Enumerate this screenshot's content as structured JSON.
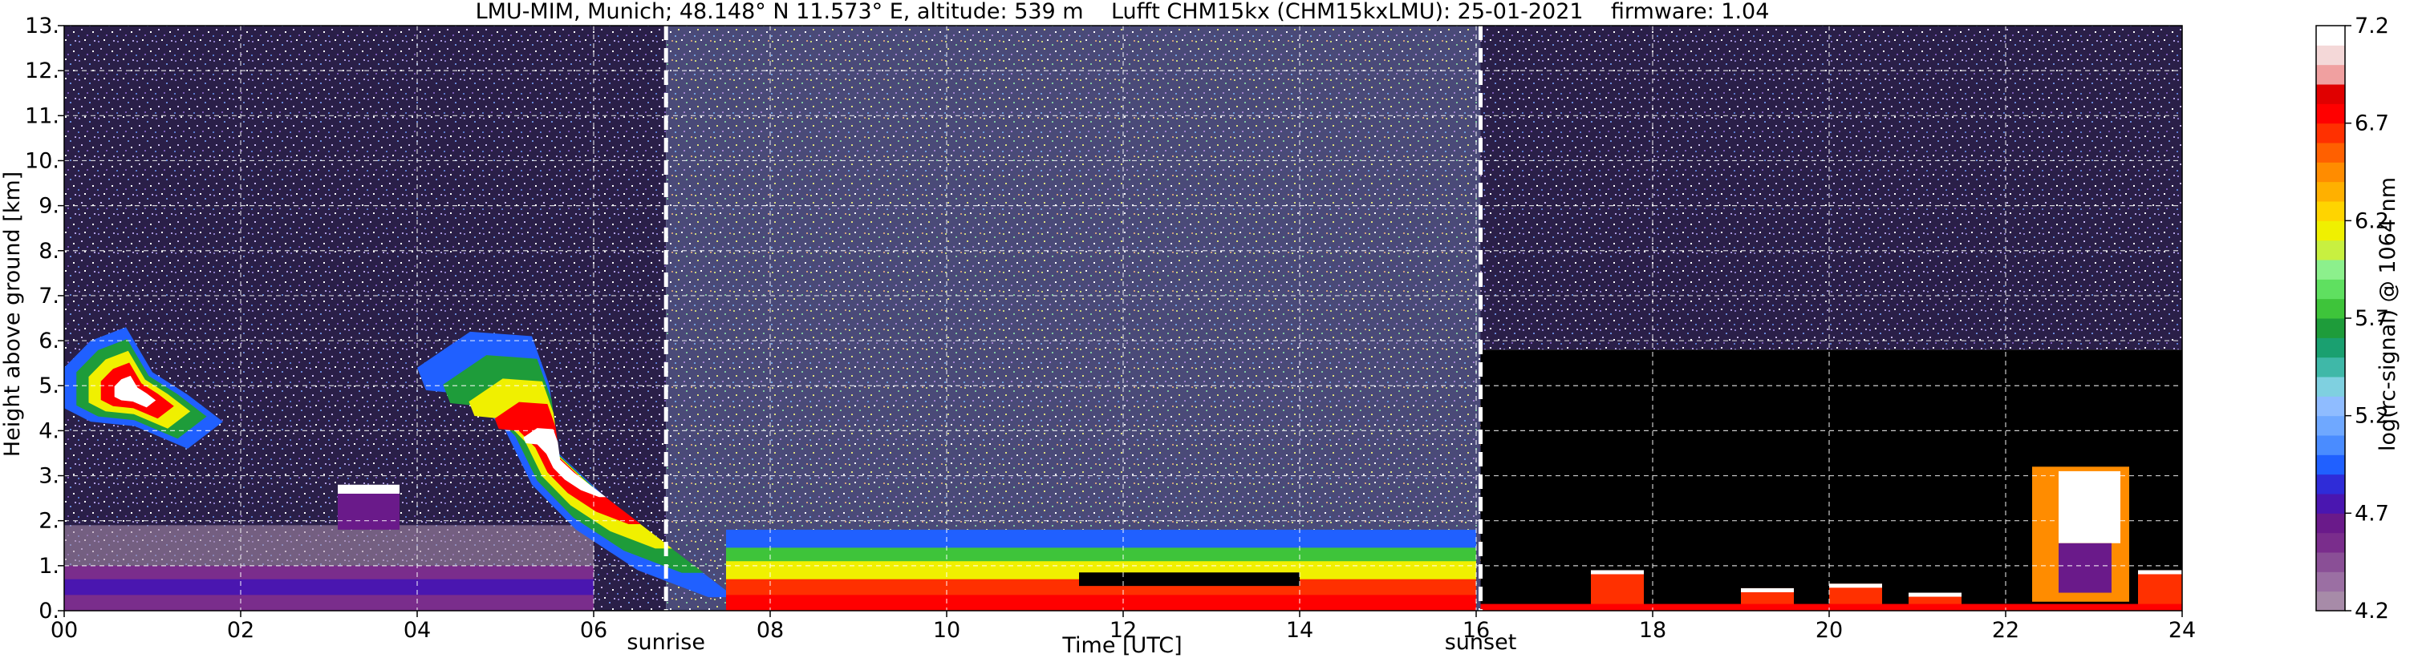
{
  "chart_data": {
    "type": "heatmap",
    "title": "LMU-MIM, Munich; 48.148° N 11.573° E, altitude: 539 m    Lufft CHM15kx (CHM15kxLMU): 25-01-2021    firmware: 1.04",
    "xlabel": "Time [UTC]",
    "ylabel": "Height above ground [km]",
    "xlim": [
      0,
      24
    ],
    "ylim": [
      0,
      13
    ],
    "x_ticks": [
      0,
      2,
      4,
      6,
      8,
      10,
      12,
      14,
      16,
      18,
      20,
      22,
      24
    ],
    "x_tick_labels": [
      "00",
      "02",
      "04",
      "06",
      "08",
      "10",
      "12",
      "14",
      "16",
      "18",
      "20",
      "22",
      "24"
    ],
    "y_ticks": [
      0,
      1,
      2,
      3,
      4,
      5,
      6,
      7,
      8,
      9,
      10,
      11,
      12,
      13
    ],
    "y_tick_labels": [
      "0.",
      "1.",
      "2.",
      "3.",
      "4.",
      "5.",
      "6.",
      "7.",
      "8.",
      "9.",
      "10.",
      "11.",
      "12.",
      "13."
    ],
    "grid": true,
    "annotations": [
      {
        "label": "sunrise",
        "x": 6.82
      },
      {
        "label": "sunset",
        "x": 16.05
      }
    ],
    "colorbar": {
      "label": "log(rc-signal) @ 1064 nm",
      "range": [
        4.2,
        7.2
      ],
      "ticks": [
        4.2,
        4.7,
        5.2,
        5.7,
        6.2,
        6.7,
        7.2
      ],
      "tick_labels": [
        "4.2",
        "4.7",
        "5.2",
        "5.7",
        "6.2",
        "6.7",
        "7.2"
      ],
      "colors": [
        "#a78ba8",
        "#9b6fa3",
        "#8a4f96",
        "#7a2d8c",
        "#6a1a8a",
        "#4a16b0",
        "#2f2cd8",
        "#2060ff",
        "#4a8cff",
        "#6fa8ff",
        "#8fbcff",
        "#7fd0e0",
        "#3fb8a8",
        "#1aa070",
        "#1e9c3a",
        "#3ec43a",
        "#5fe060",
        "#8cf08c",
        "#c8f040",
        "#f0f000",
        "#ffd400",
        "#ffb000",
        "#ff8c00",
        "#ff6000",
        "#ff3000",
        "#ff0000",
        "#e00000",
        "#f0a0a0",
        "#f4d8d8",
        "#ffffff"
      ]
    },
    "features": [
      {
        "name": "boundary-layer",
        "x": [
          0,
          6.0
        ],
        "y": [
          0.0,
          1.0
        ],
        "level": 4.7
      },
      {
        "name": "cloud-early",
        "x": [
          0,
          1.9
        ],
        "y": [
          3.2,
          6.6
        ],
        "level": 6.5
      },
      {
        "name": "cloud-small",
        "x": [
          3.1,
          3.8
        ],
        "y": [
          1.8,
          2.8
        ],
        "level": 5.0
      },
      {
        "name": "cloud-descending",
        "x": [
          4.0,
          7.8
        ],
        "y": [
          0.2,
          6.5
        ],
        "level": 6.6
      },
      {
        "name": "daytime-boundary-layer",
        "x": [
          7.5,
          16.0
        ],
        "y": [
          0.0,
          1.8
        ],
        "level": 6.4
      },
      {
        "name": "cloud-late",
        "x": [
          22.3,
          23.4
        ],
        "y": [
          0.2,
          3.2
        ],
        "level": 6.3
      }
    ]
  }
}
